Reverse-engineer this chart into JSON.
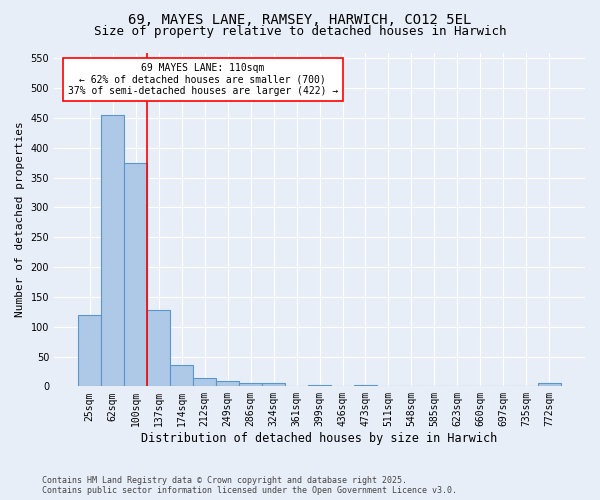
{
  "title_line1": "69, MAYES LANE, RAMSEY, HARWICH, CO12 5EL",
  "title_line2": "Size of property relative to detached houses in Harwich",
  "xlabel": "Distribution of detached houses by size in Harwich",
  "ylabel": "Number of detached properties",
  "footnote": "Contains HM Land Registry data © Crown copyright and database right 2025.\nContains public sector information licensed under the Open Government Licence v3.0.",
  "categories": [
    "25sqm",
    "62sqm",
    "100sqm",
    "137sqm",
    "174sqm",
    "212sqm",
    "249sqm",
    "286sqm",
    "324sqm",
    "361sqm",
    "399sqm",
    "436sqm",
    "473sqm",
    "511sqm",
    "548sqm",
    "585sqm",
    "623sqm",
    "660sqm",
    "697sqm",
    "735sqm",
    "772sqm"
  ],
  "values": [
    120,
    455,
    375,
    128,
    35,
    14,
    9,
    5,
    6,
    0,
    3,
    0,
    3,
    0,
    0,
    0,
    0,
    0,
    0,
    0,
    5
  ],
  "bar_color": "#aec8e8",
  "bar_edge_color": "#5a96c8",
  "annotation_line1": "69 MAYES LANE: 110sqm",
  "annotation_line2": "← 62% of detached houses are smaller (700)",
  "annotation_line3": "37% of semi-detached houses are larger (422) →",
  "vline_x": 2.5,
  "vline_color": "red",
  "ylim": [
    0,
    560
  ],
  "yticks": [
    0,
    50,
    100,
    150,
    200,
    250,
    300,
    350,
    400,
    450,
    500,
    550
  ],
  "bg_color": "#e8eef8",
  "plot_bg_color": "#e8eef8",
  "grid_color": "#ffffff",
  "title_fontsize": 10,
  "subtitle_fontsize": 9,
  "tick_fontsize": 7,
  "xlabel_fontsize": 8.5,
  "ylabel_fontsize": 8,
  "annot_fontsize": 7,
  "footnote_fontsize": 6
}
